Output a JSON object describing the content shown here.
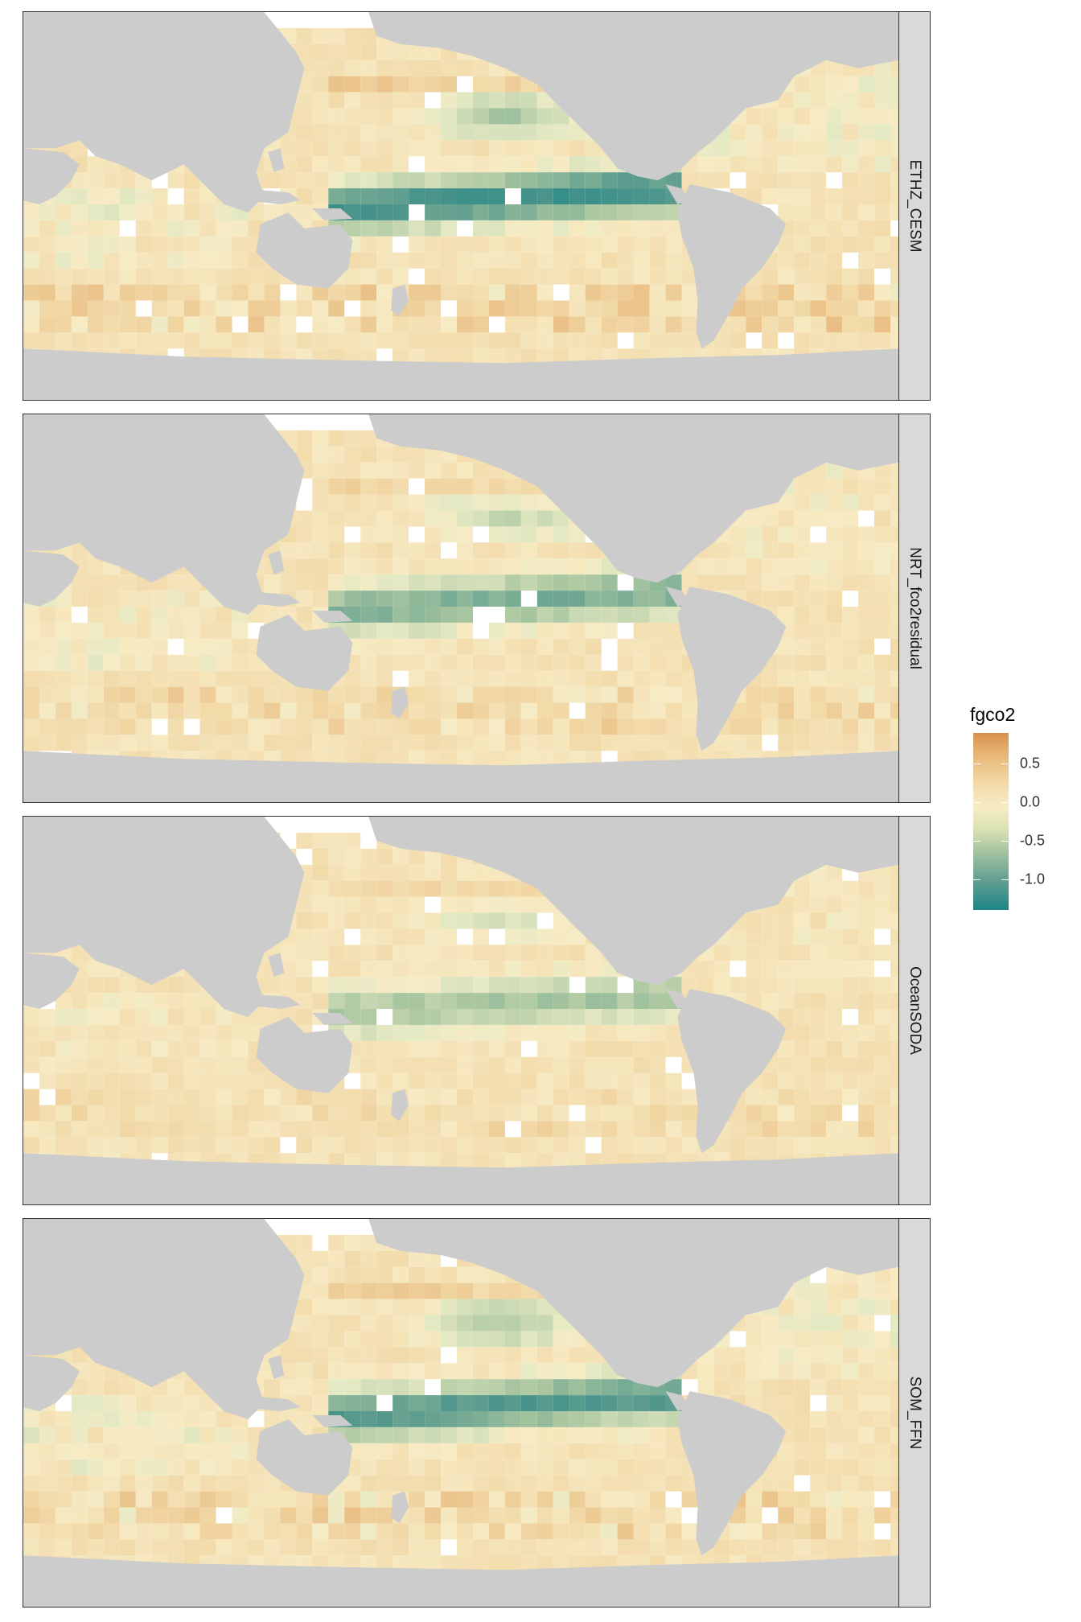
{
  "colors": {
    "land": "#cccccc",
    "no_data": "#ffffff",
    "strip": "#d9d9d9",
    "border": "#333333",
    "scale_high": "#d88f4b",
    "scale_mid": "#f7ebc4",
    "scale_low": "#1c8585"
  },
  "panels": [
    {
      "label": "ETHZ_CESM",
      "strength": 1.0,
      "seed": 11
    },
    {
      "label": "NRT_fco2residual",
      "strength": 0.7,
      "seed": 23
    },
    {
      "label": "OceanSODA",
      "strength": 0.5,
      "seed": 37
    },
    {
      "label": "SOM_FFN",
      "strength": 0.9,
      "seed": 53
    }
  ],
  "legend": {
    "title": "fgco2",
    "limits": [
      -1.4,
      0.9
    ],
    "ticks": [
      {
        "value": 0.5,
        "label": "0.5"
      },
      {
        "value": 0.0,
        "label": "0.0"
      },
      {
        "value": -0.5,
        "label": "-0.5"
      },
      {
        "value": -1.0,
        "label": "-1.0"
      }
    ]
  }
}
